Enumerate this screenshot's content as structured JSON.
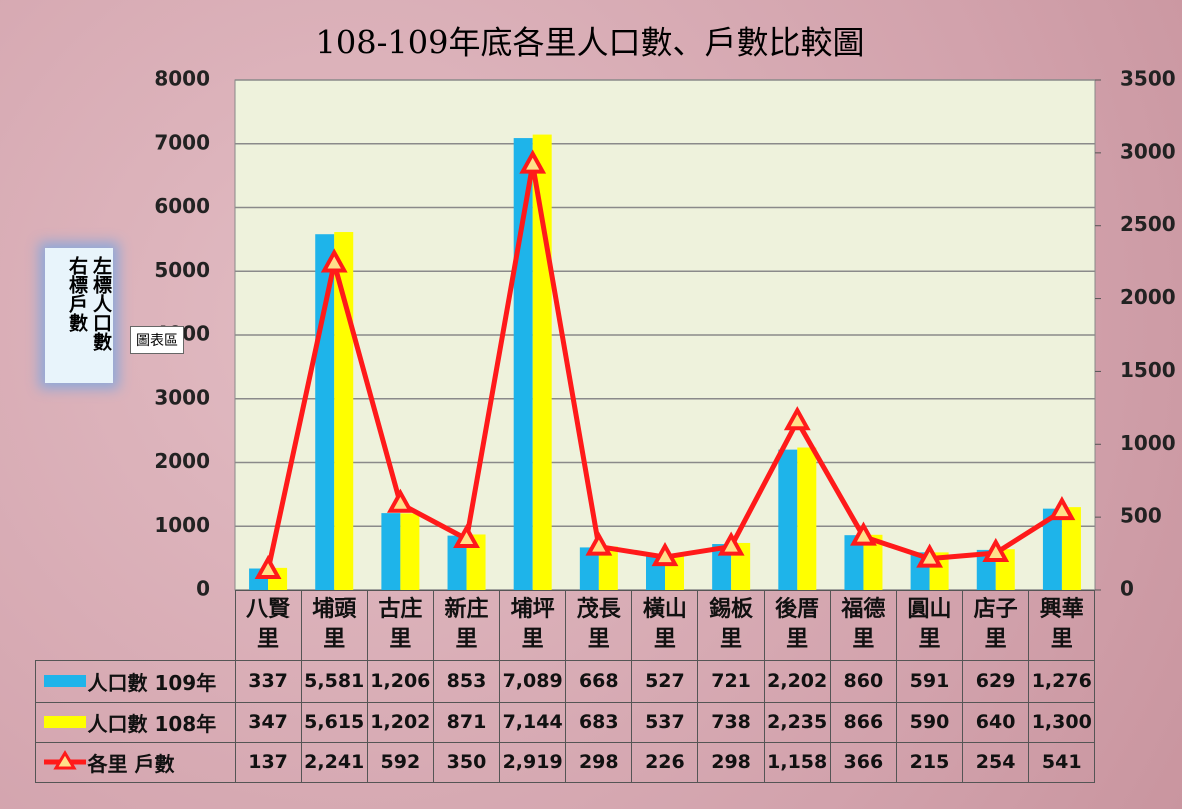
{
  "chart_data": {
    "type": "bar",
    "title": "108-109年底各里人口數、戶數比較圖",
    "annotations": [
      "左標人口數",
      "右標戶數",
      "圖表區"
    ],
    "categories": [
      "八賢里",
      "埔頭里",
      "古庄里",
      "新庄里",
      "埔坪里",
      "茂長里",
      "橫山里",
      "錫板里",
      "後厝里",
      "福德里",
      "圓山里",
      "店子里",
      "興華里"
    ],
    "series": [
      {
        "name": "人口數 109年",
        "color": "#1eb4ea",
        "values": [
          337,
          5581,
          1206,
          853,
          7089,
          668,
          527,
          721,
          2202,
          860,
          591,
          629,
          1276
        ],
        "value_labels": [
          "337",
          "5,581",
          "1,206",
          "853",
          "7,089",
          "668",
          "527",
          "721",
          "2,202",
          "860",
          "591",
          "629",
          "1,276"
        ]
      },
      {
        "name": "人口數 108年",
        "color": "#ffff00",
        "values": [
          347,
          5615,
          1202,
          871,
          7144,
          683,
          537,
          738,
          2235,
          866,
          590,
          640,
          1300
        ],
        "value_labels": [
          "347",
          "5,615",
          "1,202",
          "871",
          "7,144",
          "683",
          "537",
          "738",
          "2,235",
          "866",
          "590",
          "640",
          "1,300"
        ]
      },
      {
        "name": "各里 戶數",
        "color": "#ff1a1a",
        "type": "line",
        "axis": "y2",
        "values": [
          137,
          2241,
          592,
          350,
          2919,
          298,
          226,
          298,
          1158,
          366,
          215,
          254,
          541
        ],
        "value_labels": [
          "137",
          "2,241",
          "592",
          "350",
          "2,919",
          "298",
          "226",
          "298",
          "1,158",
          "366",
          "215",
          "254",
          "541"
        ]
      }
    ],
    "ylim": [
      0,
      8000
    ],
    "yticks": [
      0,
      1000,
      2000,
      3000,
      4000,
      5000,
      6000,
      7000,
      8000
    ],
    "y2lim": [
      0,
      3500
    ],
    "y2ticks": [
      0,
      500,
      1000,
      1500,
      2000,
      2500,
      3000,
      3500
    ],
    "grid": true
  }
}
